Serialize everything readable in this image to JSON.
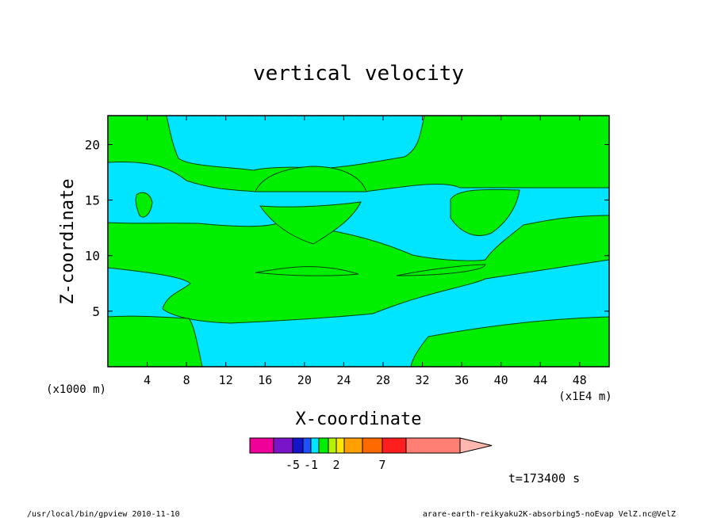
{
  "chart_data": {
    "type": "contour",
    "title": "vertical velocity",
    "xlabel": "X-coordinate",
    "ylabel": "Z-coordinate",
    "x_unit": "(x1E4 m)",
    "y_unit": "(x1000 m)",
    "xlim": [
      0,
      51
    ],
    "ylim": [
      0,
      22.6
    ],
    "xticks": [
      4,
      8,
      12,
      16,
      20,
      24,
      28,
      32,
      36,
      40,
      44,
      48
    ],
    "yticks": [
      5,
      10,
      15,
      20
    ],
    "field_colors": {
      "positive": "#00ee00",
      "negative": "#00e5ff",
      "contour_line": "#004400"
    },
    "colorbar": {
      "colors": [
        "#ee0099",
        "#7a14c8",
        "#1414c8",
        "#1e50ff",
        "#00e5ff",
        "#00ee00",
        "#b4f000",
        "#ffe600",
        "#ffa000",
        "#ff6a00",
        "#ff1e1e",
        "#ff7f74",
        "#ffb8b0"
      ],
      "tick_labels": [
        {
          "label": "-5",
          "after_index": 1
        },
        {
          "label": "-1",
          "after_index": 3
        },
        {
          "label": "2",
          "after_index": 6
        },
        {
          "label": "7",
          "after_index": 9
        }
      ]
    },
    "time_label": "t=173400 s"
  },
  "footer": {
    "left": "/usr/local/bin/gpview  2010-11-10",
    "right": "arare-earth-reikyaku2K-absorbing5-noEvap_VelZ.nc@VelZ"
  }
}
